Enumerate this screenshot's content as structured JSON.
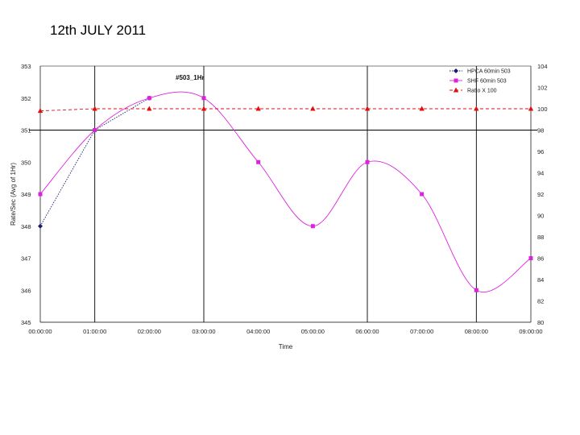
{
  "page": {
    "title": "12th JULY 2011"
  },
  "chart_data": {
    "type": "line",
    "title": "",
    "annotation": "#503_1Hr",
    "xlabel": "Time",
    "ylabel": "Rate/Sec (Avg of 1Hr)",
    "categories": [
      "00:00:00",
      "01:00:00",
      "02:00:00",
      "03:00:00",
      "04:00:00",
      "05:00:00",
      "06:00:00",
      "07:00:00",
      "08:00:00",
      "09:00:00"
    ],
    "y_left": {
      "ticks": [
        "353",
        "352",
        "351",
        "350",
        "349",
        "348",
        "347",
        "346",
        "345"
      ],
      "ylim": [
        345,
        353
      ]
    },
    "y_right": {
      "ticks": [
        "104",
        "102",
        "100",
        "98",
        "96",
        "94",
        "92",
        "90",
        "88",
        "86",
        "84",
        "82",
        "80"
      ],
      "ylim": [
        80,
        104
      ]
    },
    "legend_position": "top-right",
    "series": [
      {
        "name": "HPCA 60min 503",
        "axis": "left",
        "color": "#1a1a6e",
        "marker": "diamond",
        "style": "dotted",
        "values": [
          348,
          351,
          352,
          null,
          null,
          null,
          null,
          null,
          null,
          null
        ]
      },
      {
        "name": "SHF 60min 503",
        "axis": "left",
        "color": "#e020e0",
        "marker": "square",
        "style": "smooth",
        "values": [
          349,
          351,
          352,
          352,
          350,
          348,
          350,
          349,
          346,
          347
        ]
      },
      {
        "name": "Ratio X 100",
        "axis": "right",
        "color": "#e01010",
        "marker": "triangle",
        "style": "dashed",
        "values": [
          99.8,
          100,
          100,
          100,
          100,
          100,
          100,
          100,
          100,
          100
        ]
      }
    ],
    "grid": {
      "vertical_major_at": [
        "01:00:00",
        "03:00:00",
        "06:00:00",
        "08:00:00"
      ],
      "horizontal_at_left": [
        351
      ]
    }
  }
}
